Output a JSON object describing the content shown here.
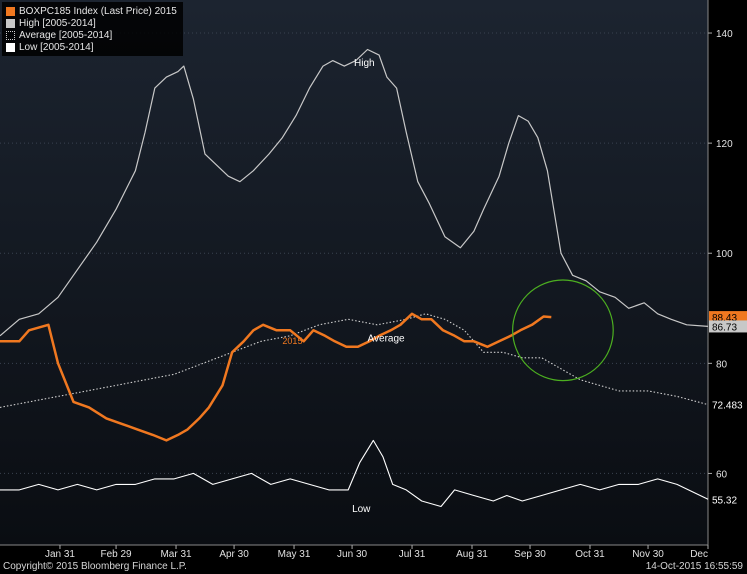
{
  "chart_data": {
    "type": "line",
    "ylim": [
      47,
      146
    ],
    "y_ticks": [
      60,
      80,
      100,
      120,
      140
    ],
    "y_tick_labels": [
      "60",
      "80",
      "100",
      "120",
      "140"
    ],
    "x_tick_labels": [
      "Jan 31",
      "Feb 29",
      "Mar 31",
      "Apr 30",
      "May 31",
      "Jun 30",
      "Jul 31",
      "Aug 31",
      "Sep 30",
      "Oct 31",
      "Nov 30",
      "Dec"
    ],
    "x_tick_days": [
      31,
      60,
      91,
      121,
      152,
      182,
      213,
      244,
      274,
      305,
      335,
      366
    ],
    "x_range_days": [
      0,
      366
    ],
    "grid": "horizontal-dotted",
    "legend_position": "top-left",
    "legend": [
      {
        "label": "BOXPC185 Index (Last Price) 2015",
        "color": "#f07820",
        "style": "solid"
      },
      {
        "label": "High [2005-2014]",
        "color": "#c8c8c8",
        "style": "solid"
      },
      {
        "label": "Average [2005-2014]",
        "color": "#d0d0d0",
        "style": "dotted"
      },
      {
        "label": "Low [2005-2014]",
        "color": "#ffffff",
        "style": "solid"
      }
    ],
    "series": [
      {
        "name": "BOXPC185 Index (Last Price) 2015",
        "color": "#f07820",
        "width": 2.5,
        "dash": "",
        "last_value_label": "88.43",
        "label_bg": "#f07820",
        "label_fg": "#000000",
        "x": [
          0,
          10,
          15,
          25,
          30,
          38,
          46,
          55,
          63,
          71,
          79,
          86,
          92,
          97,
          103,
          108,
          115,
          120,
          126,
          131,
          136,
          143,
          150,
          157,
          162,
          168,
          173,
          179,
          185,
          191,
          196,
          202,
          207,
          213,
          218,
          223,
          229,
          235,
          240,
          245,
          252,
          258,
          264,
          269,
          275,
          281,
          285
        ],
        "y": [
          84,
          84,
          86,
          87,
          80,
          73,
          72,
          70,
          69,
          68,
          67,
          66,
          67,
          68,
          70,
          72,
          76,
          82,
          84,
          86,
          87,
          86,
          86,
          84,
          86,
          85,
          84,
          83,
          83,
          84,
          85,
          86,
          87,
          89,
          88,
          88,
          86,
          85,
          84,
          84,
          83,
          84,
          85,
          86,
          87,
          88.5,
          88.4
        ]
      },
      {
        "name": "High [2005-2014]",
        "color": "#c8c8c8",
        "width": 1.2,
        "dash": "",
        "last_value_label": "86.73",
        "label_bg": "#c8c8c8",
        "label_fg": "#000000",
        "text_label": "High",
        "text_label_at": [
          183,
          134
        ],
        "x": [
          0,
          10,
          20,
          30,
          40,
          50,
          60,
          70,
          75,
          80,
          86,
          92,
          95,
          100,
          106,
          112,
          118,
          124,
          131,
          139,
          146,
          153,
          160,
          167,
          172,
          178,
          184,
          190,
          196,
          200,
          205,
          210,
          216,
          222,
          230,
          238,
          245,
          250,
          258,
          263,
          268,
          273,
          278,
          283,
          290,
          296,
          303,
          310,
          318,
          325,
          333,
          340,
          347,
          355,
          366
        ],
        "y": [
          85,
          88,
          89,
          92,
          97,
          102,
          108,
          115,
          122,
          130,
          132,
          133,
          134,
          128,
          118,
          116,
          114,
          113,
          115,
          118,
          121,
          125,
          130,
          134,
          135,
          134,
          135,
          137,
          136,
          132,
          130,
          122,
          113,
          109,
          103,
          101,
          104,
          108,
          114,
          120,
          125,
          124,
          121,
          115,
          100,
          96,
          95,
          93,
          92,
          90,
          91,
          89,
          88,
          87,
          86.7
        ]
      },
      {
        "name": "Average [2005-2014]",
        "color": "#d0d0d0",
        "width": 1.1,
        "dash": "1.5 2",
        "last_value_label": "72.483",
        "label_bg": "#000000",
        "label_fg": "#ffffff",
        "text_label": "Average",
        "text_label_at": [
          190,
          84
        ],
        "x": [
          0,
          15,
          30,
          45,
          60,
          75,
          90,
          105,
          120,
          135,
          150,
          165,
          180,
          195,
          210,
          220,
          230,
          240,
          250,
          260,
          270,
          280,
          290,
          300,
          310,
          320,
          335,
          350,
          366
        ],
        "y": [
          72,
          73,
          74,
          75,
          76,
          77,
          78,
          80,
          82,
          84,
          85,
          87,
          88,
          87,
          88,
          89,
          88,
          86,
          82,
          82,
          81,
          81,
          79,
          77,
          76,
          75,
          75,
          74,
          72.5
        ]
      },
      {
        "name": "Low [2005-2014]",
        "color": "#ffffff",
        "width": 1.1,
        "dash": "",
        "last_value_label": "55.32",
        "label_bg": "#000000",
        "label_fg": "#ffffff",
        "text_label": "Low",
        "text_label_at": [
          182,
          53
        ],
        "x": [
          0,
          10,
          20,
          30,
          40,
          50,
          60,
          70,
          80,
          90,
          100,
          110,
          120,
          130,
          140,
          150,
          160,
          170,
          180,
          186,
          193,
          198,
          203,
          210,
          218,
          228,
          235,
          245,
          255,
          262,
          270,
          280,
          290,
          300,
          310,
          320,
          330,
          340,
          350,
          366
        ],
        "y": [
          57,
          57,
          58,
          57,
          58,
          57,
          58,
          58,
          59,
          59,
          60,
          58,
          59,
          60,
          58,
          59,
          58,
          57,
          57,
          62,
          66,
          63,
          58,
          57,
          55,
          54,
          57,
          56,
          55,
          56,
          55,
          56,
          57,
          58,
          57,
          58,
          58,
          59,
          58,
          55.3
        ]
      }
    ],
    "annotation": {
      "type": "circle",
      "color": "#4caf20",
      "center_day": 291,
      "center_value": 86,
      "radius_days": 26
    }
  },
  "footer": {
    "copyright": "Copyright© 2015 Bloomberg Finance L.P.",
    "timestamp": "14-Oct-2015 16:55:59"
  }
}
